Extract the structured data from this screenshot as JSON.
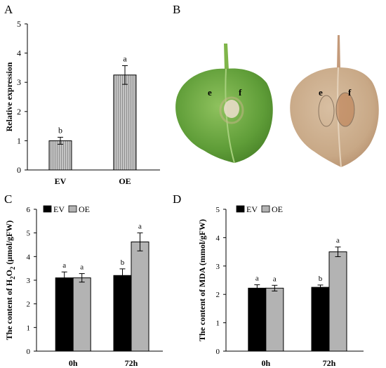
{
  "panels": {
    "A": "A",
    "B": "B",
    "C": "C",
    "D": "D"
  },
  "photo": {
    "leaf_left_labels": [
      "e",
      "f"
    ],
    "leaf_right_labels": [
      "e",
      "f"
    ],
    "colors": {
      "leaf_green": "#6aa83e",
      "leaf_stained": "#c9ab8c",
      "background": "#ffffff"
    }
  },
  "chart_data": [
    {
      "panel": "A",
      "type": "bar",
      "categories": [
        "EV",
        "OE"
      ],
      "values": [
        1.0,
        3.25
      ],
      "errors": [
        0.12,
        0.32
      ],
      "significance": [
        "b",
        "a"
      ],
      "xlabel": "",
      "ylabel": "Relative expression",
      "ylim": [
        0,
        5
      ],
      "yticks": [
        "0",
        "1",
        "2",
        "3",
        "4",
        "5"
      ],
      "bar_fill": "#b8b8b8",
      "bar_pattern": "vertical-stripes",
      "grid": false
    },
    {
      "panel": "C",
      "type": "bar",
      "categories": [
        "0h",
        "72h"
      ],
      "series": [
        {
          "name": "EV",
          "values": [
            3.1,
            3.2
          ],
          "errors": [
            0.25,
            0.28
          ],
          "significance": [
            "a",
            "b"
          ],
          "color": "#000000"
        },
        {
          "name": "OE",
          "values": [
            3.1,
            4.62
          ],
          "errors": [
            0.18,
            0.38
          ],
          "significance": [
            "a",
            "a"
          ],
          "color": "#b3b3b3"
        }
      ],
      "ylabel_parts": {
        "pre": "The content of H",
        "sub1": "2",
        "mid": "O",
        "sub2": "2",
        "post": " (μmol/gFW)"
      },
      "ylim": [
        0,
        6
      ],
      "yticks": [
        "0",
        "1",
        "2",
        "3",
        "4",
        "5",
        "6"
      ],
      "legend_position": "top-left",
      "grid": false
    },
    {
      "panel": "D",
      "type": "bar",
      "categories": [
        "0h",
        "72h"
      ],
      "series": [
        {
          "name": "EV",
          "values": [
            2.22,
            2.25
          ],
          "errors": [
            0.12,
            0.08
          ],
          "significance": [
            "a",
            "b"
          ],
          "color": "#000000"
        },
        {
          "name": "OE",
          "values": [
            2.22,
            3.5
          ],
          "errors": [
            0.1,
            0.17
          ],
          "significance": [
            "a",
            "a"
          ],
          "color": "#b3b3b3"
        }
      ],
      "ylabel": "The content of MDA (mmol/gFW)",
      "ylim": [
        0,
        5
      ],
      "yticks": [
        "0",
        "1",
        "2",
        "3",
        "4",
        "5"
      ],
      "legend_position": "top-left",
      "grid": false
    }
  ]
}
